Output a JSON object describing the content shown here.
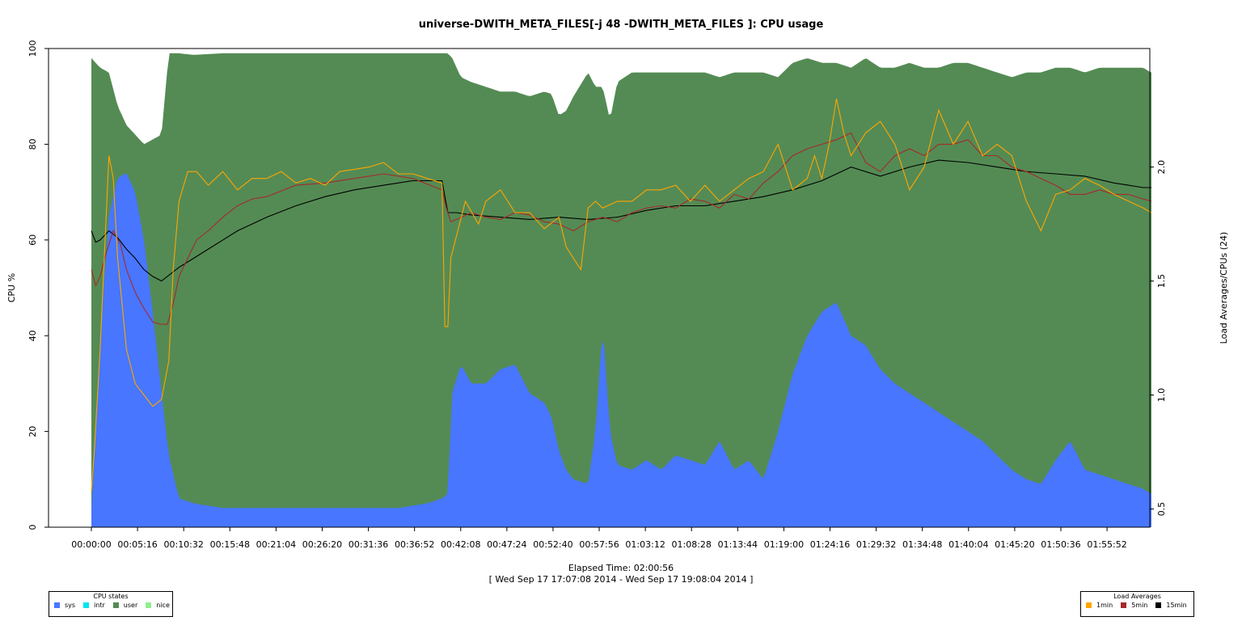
{
  "chart_data": {
    "type": "area",
    "title": "universe-DWITH_META_FILES[-j 48 -DWITH_META_FILES ]: CPU usage",
    "xlabel": "Elapsed Time: 02:00:56",
    "xlabel2": "[ Wed Sep 17 17:07:08 2014 - Wed Sep 17 19:08:04 2014 ]",
    "ylabel": "CPU %",
    "ylabel_right": "Load Averages/CPUs (24)",
    "xlim_seconds": [
      0,
      7256
    ],
    "ylim": [
      0,
      100
    ],
    "ylim_right": [
      0.42,
      2.52
    ],
    "x_ticks": [
      "00:00:00",
      "00:05:16",
      "00:10:32",
      "00:15:48",
      "00:21:04",
      "00:26:20",
      "00:31:36",
      "00:36:52",
      "00:42:08",
      "00:47:24",
      "00:52:40",
      "00:57:56",
      "01:03:12",
      "01:08:28",
      "01:13:44",
      "01:19:00",
      "01:24:16",
      "01:29:32",
      "01:34:48",
      "01:40:04",
      "01:45:20",
      "01:50:36",
      "01:55:52"
    ],
    "y_ticks": [
      0,
      20,
      40,
      60,
      80,
      100
    ],
    "y_ticks_right": [
      "0.5",
      "1.0",
      "1.5",
      "2.0"
    ],
    "colors": {
      "sys": "#4876ff",
      "intr": "#00e5ee",
      "user": "#548b54",
      "nice": "#90ee90",
      "load1": "#ffa500",
      "load5": "#a52a2a",
      "load15": "#000000"
    },
    "series": [
      {
        "name": "sys",
        "kind": "stack",
        "x": [
          0,
          60,
          120,
          180,
          240,
          300,
          360,
          420,
          480,
          530,
          600,
          700,
          900,
          1200,
          1500,
          1800,
          2100,
          2300,
          2400,
          2440,
          2470,
          2530,
          2600,
          2700,
          2800,
          2900,
          3000,
          3100,
          3150,
          3200,
          3250,
          3300,
          3400,
          3450,
          3500,
          3550,
          3600,
          3700,
          3800,
          3900,
          4000,
          4100,
          4200,
          4300,
          4400,
          4500,
          4600,
          4700,
          4800,
          4900,
          5000,
          5100,
          5200,
          5300,
          5400,
          5500,
          5600,
          5700,
          5800,
          5900,
          6000,
          6100,
          6200,
          6300,
          6400,
          6500,
          6600,
          6700,
          6800,
          6900,
          7000,
          7100,
          7200,
          7250
        ],
        "values": [
          3,
          40,
          65,
          73,
          74,
          70,
          60,
          45,
          28,
          15,
          6,
          5,
          4,
          4,
          4,
          4,
          4,
          5,
          6,
          7,
          28,
          34,
          30,
          30,
          33,
          34,
          28,
          26,
          23,
          16,
          12,
          10,
          9,
          20,
          42,
          20,
          13,
          12,
          14,
          12,
          15,
          14,
          13,
          18,
          12,
          14,
          10,
          20,
          32,
          40,
          45,
          47,
          40,
          38,
          33,
          30,
          28,
          26,
          24,
          22,
          20,
          18,
          15,
          12,
          10,
          9,
          14,
          18,
          12,
          11,
          10,
          9,
          8,
          7
        ]
      },
      {
        "name": "user",
        "kind": "stack",
        "x": [
          0,
          60,
          120,
          180,
          240,
          300,
          360,
          420,
          480,
          530,
          600,
          900,
          1200,
          1500,
          1800,
          2100,
          2300,
          2400,
          2440,
          2470,
          2530,
          2600,
          2700,
          2800,
          2900,
          3000,
          3100,
          3200,
          3300,
          3400,
          3450,
          3500,
          3600,
          3700,
          3800,
          3900,
          4000,
          4100,
          4200,
          4300,
          4400,
          4500,
          4600,
          4700,
          4800,
          4900,
          5000,
          5100,
          5200,
          5300,
          5400,
          5500,
          5600,
          5700,
          5800,
          5900,
          6000,
          6100,
          6200,
          6300,
          6400,
          6500,
          6600,
          6700,
          6800,
          6900,
          7000,
          7100,
          7200,
          7250
        ],
        "values": [
          95,
          56,
          30,
          15,
          10,
          12,
          20,
          36,
          54,
          84,
          93,
          95,
          95,
          95,
          95,
          95,
          94,
          93,
          92,
          70,
          60,
          63,
          62,
          58,
          57,
          62,
          65,
          70,
          80,
          86,
          72,
          50,
          80,
          83,
          81,
          83,
          80,
          81,
          82,
          76,
          83,
          81,
          85,
          74,
          65,
          58,
          52,
          50,
          56,
          60,
          63,
          66,
          69,
          70,
          72,
          75,
          77,
          78,
          80,
          82,
          85,
          86,
          82,
          78,
          83,
          85,
          86,
          87,
          88,
          88
        ]
      },
      {
        "name": "load1",
        "kind": "line",
        "x": [
          0,
          20,
          60,
          120,
          150,
          180,
          240,
          300,
          360,
          420,
          480,
          530,
          560,
          600,
          660,
          720,
          800,
          900,
          1000,
          1100,
          1200,
          1300,
          1400,
          1500,
          1600,
          1700,
          1800,
          1900,
          2000,
          2100,
          2200,
          2300,
          2400,
          2420,
          2440,
          2460,
          2500,
          2560,
          2650,
          2700,
          2800,
          2900,
          3000,
          3100,
          3200,
          3250,
          3300,
          3350,
          3400,
          3450,
          3500,
          3600,
          3700,
          3800,
          3900,
          4000,
          4100,
          4200,
          4300,
          4400,
          4500,
          4600,
          4700,
          4800,
          4900,
          4950,
          5000,
          5050,
          5100,
          5150,
          5200,
          5300,
          5400,
          5500,
          5600,
          5700,
          5800,
          5900,
          6000,
          6100,
          6200,
          6300,
          6400,
          6500,
          6600,
          6700,
          6800,
          6900,
          7000,
          7100,
          7200,
          7256
        ],
        "values": [
          0.58,
          0.75,
          1.2,
          2.05,
          1.95,
          1.6,
          1.2,
          1.05,
          1.0,
          0.95,
          0.98,
          1.15,
          1.55,
          1.85,
          1.98,
          1.98,
          1.92,
          1.98,
          1.9,
          1.95,
          1.95,
          1.98,
          1.93,
          1.95,
          1.92,
          1.98,
          1.99,
          2.0,
          2.02,
          1.97,
          1.97,
          1.95,
          1.93,
          1.3,
          1.3,
          1.6,
          1.7,
          1.85,
          1.75,
          1.85,
          1.9,
          1.8,
          1.8,
          1.73,
          1.78,
          1.65,
          1.6,
          1.55,
          1.82,
          1.85,
          1.82,
          1.85,
          1.85,
          1.9,
          1.9,
          1.92,
          1.85,
          1.92,
          1.85,
          1.9,
          1.95,
          1.98,
          2.1,
          1.9,
          1.95,
          2.05,
          1.95,
          2.1,
          2.3,
          2.15,
          2.05,
          2.15,
          2.2,
          2.1,
          1.9,
          2.0,
          2.25,
          2.1,
          2.2,
          2.05,
          2.1,
          2.05,
          1.85,
          1.72,
          1.88,
          1.9,
          1.95,
          1.92,
          1.88,
          1.85,
          1.82,
          1.8
        ]
      },
      {
        "name": "load5",
        "kind": "line",
        "x": [
          0,
          30,
          60,
          100,
          150,
          200,
          240,
          300,
          360,
          420,
          480,
          520,
          560,
          600,
          660,
          720,
          800,
          900,
          1000,
          1100,
          1200,
          1400,
          1600,
          1800,
          2000,
          2200,
          2400,
          2430,
          2460,
          2500,
          2600,
          2700,
          2800,
          2900,
          3000,
          3100,
          3200,
          3300,
          3400,
          3500,
          3600,
          3700,
          3800,
          3900,
          4000,
          4100,
          4200,
          4300,
          4400,
          4500,
          4600,
          4700,
          4800,
          4900,
          5000,
          5100,
          5200,
          5300,
          5400,
          5500,
          5600,
          5700,
          5800,
          5900,
          6000,
          6100,
          6200,
          6300,
          6400,
          6500,
          6600,
          6700,
          6800,
          6900,
          7000,
          7100,
          7200,
          7256
        ],
        "values": [
          1.55,
          1.48,
          1.52,
          1.62,
          1.72,
          1.66,
          1.55,
          1.45,
          1.38,
          1.32,
          1.31,
          1.31,
          1.4,
          1.52,
          1.6,
          1.68,
          1.72,
          1.78,
          1.83,
          1.86,
          1.87,
          1.92,
          1.93,
          1.95,
          1.97,
          1.95,
          1.9,
          1.82,
          1.76,
          1.77,
          1.8,
          1.78,
          1.77,
          1.8,
          1.79,
          1.76,
          1.75,
          1.72,
          1.76,
          1.78,
          1.76,
          1.8,
          1.82,
          1.83,
          1.82,
          1.86,
          1.85,
          1.82,
          1.88,
          1.86,
          1.93,
          1.98,
          2.05,
          2.08,
          2.1,
          2.12,
          2.15,
          2.02,
          1.98,
          2.05,
          2.08,
          2.05,
          2.1,
          2.1,
          2.12,
          2.05,
          2.05,
          2.0,
          1.98,
          1.95,
          1.92,
          1.88,
          1.88,
          1.9,
          1.88,
          1.88,
          1.86,
          1.85
        ]
      },
      {
        "name": "load15",
        "kind": "line",
        "x": [
          0,
          30,
          60,
          120,
          180,
          240,
          300,
          360,
          420,
          480,
          540,
          600,
          700,
          800,
          900,
          1000,
          1200,
          1400,
          1600,
          1800,
          2000,
          2200,
          2400,
          2440,
          2500,
          2600,
          2800,
          3000,
          3200,
          3400,
          3600,
          3800,
          4000,
          4200,
          4400,
          4600,
          4800,
          5000,
          5200,
          5400,
          5600,
          5800,
          6000,
          6200,
          6400,
          6600,
          6800,
          7000,
          7100,
          7200,
          7256
        ],
        "values": [
          1.72,
          1.67,
          1.68,
          1.72,
          1.69,
          1.64,
          1.6,
          1.55,
          1.52,
          1.5,
          1.53,
          1.56,
          1.6,
          1.64,
          1.68,
          1.72,
          1.78,
          1.83,
          1.87,
          1.9,
          1.92,
          1.94,
          1.94,
          1.8,
          1.8,
          1.79,
          1.78,
          1.77,
          1.78,
          1.77,
          1.78,
          1.81,
          1.83,
          1.83,
          1.85,
          1.87,
          1.9,
          1.94,
          2.0,
          1.96,
          2.0,
          2.03,
          2.02,
          2.0,
          1.98,
          1.97,
          1.96,
          1.93,
          1.92,
          1.91,
          1.91
        ]
      }
    ]
  },
  "legend_cpu": {
    "title": "CPU states",
    "items": [
      {
        "label": "sys",
        "color": "#4876ff"
      },
      {
        "label": "intr",
        "color": "#00e5ee"
      },
      {
        "label": "user",
        "color": "#548b54"
      },
      {
        "label": "nice",
        "color": "#90ee90"
      }
    ]
  },
  "legend_load": {
    "title": "Load Averages",
    "items": [
      {
        "label": "1min",
        "color": "#ffa500"
      },
      {
        "label": "5min",
        "color": "#a52a2a"
      },
      {
        "label": "15min",
        "color": "#000000"
      }
    ]
  }
}
